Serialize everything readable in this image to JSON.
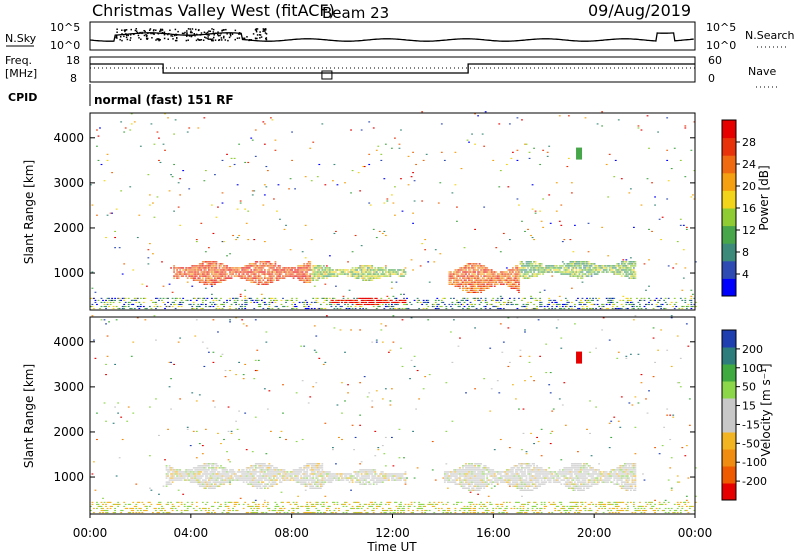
{
  "header": {
    "title": "Christmas Valley West (fitACF)",
    "beam": "Beam 23",
    "date": "09/Aug/2019"
  },
  "strips": {
    "nsky_label": "N.Sky",
    "nsky_ticks": [
      "10^5",
      "10^0"
    ],
    "nsearch_label": "N.Search",
    "nsearch_ticks": [
      "10^5",
      "10^0"
    ],
    "freq_label_1": "Freq.",
    "freq_label_2": "[MHz]",
    "freq_ticks": [
      "18",
      "8"
    ],
    "nave_label": "Nave",
    "nave_ticks": [
      "60",
      "0"
    ],
    "cpid_label": "CPID",
    "cpid_text": "normal (fast) 151 RF"
  },
  "chart_data": [
    {
      "type": "heatmap",
      "name": "power",
      "ylabel": "Slant Range [km]",
      "yticks": [
        1000,
        2000,
        3000,
        4000
      ],
      "ylim": [
        180,
        4550
      ],
      "xlim": [
        0,
        24
      ],
      "colorbar": {
        "label": "Power [dB]",
        "ticks": [
          "28",
          "24",
          "20",
          "16",
          "12",
          "8",
          "4"
        ],
        "colors": [
          "#0000ff",
          "#2e4bb3",
          "#3c8a7a",
          "#47a64a",
          "#8fcc33",
          "#f2d41a",
          "#f5a010",
          "#ef6a10",
          "#e8320a",
          "#e60000"
        ]
      },
      "regions": [
        {
          "t0": 3.3,
          "t1": 8.7,
          "r0": 700,
          "r1": 1250,
          "level": 0.82
        },
        {
          "t0": 8.7,
          "t1": 12.5,
          "r0": 800,
          "r1": 1150,
          "level": 0.45
        },
        {
          "t0": 14.2,
          "t1": 17.0,
          "r0": 500,
          "r1": 1200,
          "level": 0.78
        },
        {
          "t0": 17.0,
          "t1": 21.6,
          "r0": 850,
          "r1": 1250,
          "level": 0.4
        },
        {
          "t0": 9.5,
          "t1": 12.5,
          "r0": 250,
          "r1": 420,
          "level": 0.95
        }
      ]
    },
    {
      "type": "heatmap",
      "name": "velocity",
      "ylabel": "Slant Range [km]",
      "xlabel": "Time UT",
      "xticks": [
        "00:00",
        "04:00",
        "08:00",
        "12:00",
        "16:00",
        "20:00",
        "00:00"
      ],
      "yticks": [
        1000,
        2000,
        3000,
        4000
      ],
      "ylim": [
        180,
        4550
      ],
      "xlim": [
        0,
        24
      ],
      "colorbar": {
        "label": "Velocity [m s⁻¹]",
        "ticks": [
          "200",
          "100",
          "50",
          "15",
          "-15",
          "-50",
          "-100",
          "-200"
        ],
        "colors": [
          "#e60000",
          "#ef5a00",
          "#f08c10",
          "#f2b420",
          "#c8c8c8",
          "#c8c8c8",
          "#8cd64a",
          "#3faa3f",
          "#2e7d7d",
          "#1f3fb0"
        ]
      },
      "regions": [
        {
          "t0": 3.0,
          "t1": 9.2,
          "r0": 700,
          "r1": 1300,
          "level": 0.5
        },
        {
          "t0": 14.0,
          "t1": 21.6,
          "r0": 650,
          "r1": 1300,
          "level": 0.5
        },
        {
          "t0": 9.0,
          "t1": 12.5,
          "r0": 780,
          "r1": 1150,
          "level": 0.5
        }
      ]
    }
  ]
}
